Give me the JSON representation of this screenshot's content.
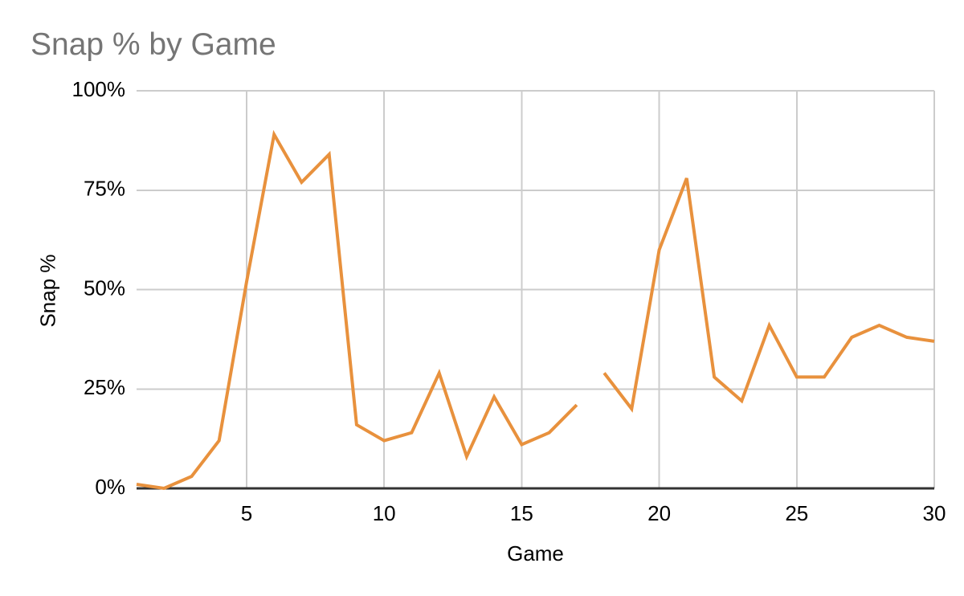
{
  "chart_data": {
    "type": "line",
    "title": "Snap % by Game",
    "xlabel": "Game",
    "ylabel": "Snap %",
    "xlim": [
      1,
      30
    ],
    "ylim": [
      0,
      100
    ],
    "grid": true,
    "legend": "none",
    "x_ticks": [
      5,
      10,
      15,
      20,
      25,
      30
    ],
    "y_ticks": [
      {
        "label": "0%",
        "value": 0
      },
      {
        "label": "25%",
        "value": 25
      },
      {
        "label": "50%",
        "value": 50
      },
      {
        "label": "75%",
        "value": 75
      },
      {
        "label": "100%",
        "value": 100
      }
    ],
    "series": [
      {
        "name": "Snap %",
        "color": "#E8913D",
        "gap_after_game": 17,
        "points": [
          {
            "game": 1,
            "pct": 1
          },
          {
            "game": 2,
            "pct": 0
          },
          {
            "game": 3,
            "pct": 3
          },
          {
            "game": 4,
            "pct": 12
          },
          {
            "game": 5,
            "pct": 52
          },
          {
            "game": 6,
            "pct": 89
          },
          {
            "game": 7,
            "pct": 77
          },
          {
            "game": 8,
            "pct": 84
          },
          {
            "game": 9,
            "pct": 16
          },
          {
            "game": 10,
            "pct": 12
          },
          {
            "game": 11,
            "pct": 14
          },
          {
            "game": 12,
            "pct": 29
          },
          {
            "game": 13,
            "pct": 8
          },
          {
            "game": 14,
            "pct": 23
          },
          {
            "game": 15,
            "pct": 11
          },
          {
            "game": 16,
            "pct": 14
          },
          {
            "game": 17,
            "pct": 21
          },
          {
            "game": 18,
            "pct": 29
          },
          {
            "game": 19,
            "pct": 20
          },
          {
            "game": 20,
            "pct": 60
          },
          {
            "game": 21,
            "pct": 78
          },
          {
            "game": 22,
            "pct": 28
          },
          {
            "game": 23,
            "pct": 22
          },
          {
            "game": 24,
            "pct": 41
          },
          {
            "game": 25,
            "pct": 28
          },
          {
            "game": 26,
            "pct": 28
          },
          {
            "game": 27,
            "pct": 38
          },
          {
            "game": 28,
            "pct": 41
          },
          {
            "game": 29,
            "pct": 38
          },
          {
            "game": 30,
            "pct": 37
          }
        ]
      }
    ],
    "colors": {
      "series": "#E8913D",
      "title_text": "#757575",
      "axis_text": "#000000",
      "gridline": "#CCCCCC",
      "axis_line": "#333333",
      "background": "#FFFFFF"
    }
  }
}
